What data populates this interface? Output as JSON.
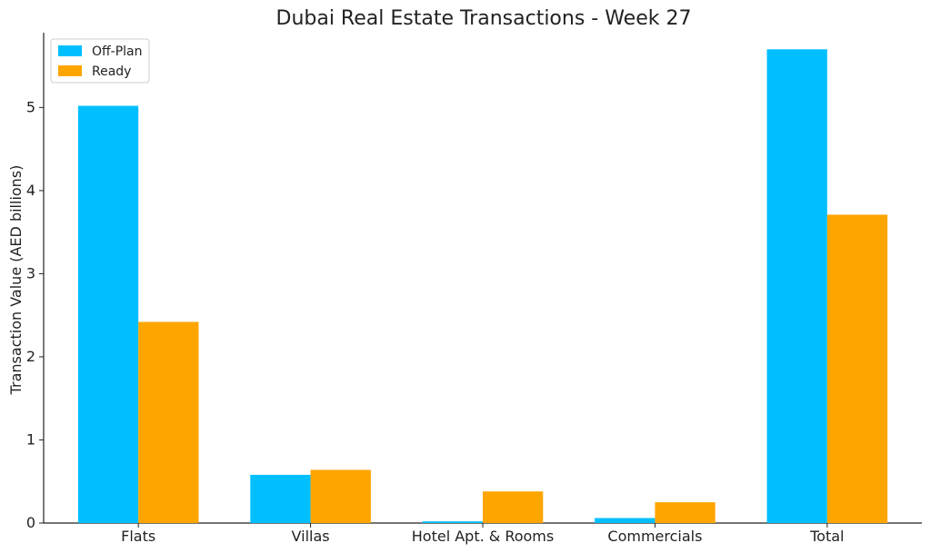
{
  "chart_data": {
    "type": "bar",
    "title": "Dubai Real Estate Transactions - Week 27",
    "xlabel": "",
    "ylabel": "Transaction Value (AED billions)",
    "categories": [
      "Flats",
      "Villas",
      "Hotel Apt. & Rooms",
      "Commercials",
      "Total"
    ],
    "series": [
      {
        "name": "Off-Plan",
        "color": "#00bfff",
        "values": [
          5.02,
          0.58,
          0.02,
          0.06,
          5.7
        ]
      },
      {
        "name": "Ready",
        "color": "#ffa500",
        "values": [
          2.42,
          0.64,
          0.38,
          0.25,
          3.71
        ]
      }
    ],
    "ylim": [
      0,
      5.9
    ],
    "yticks": [
      0,
      1,
      2,
      3,
      4,
      5
    ],
    "grid": false,
    "legend_position": "top-left"
  }
}
